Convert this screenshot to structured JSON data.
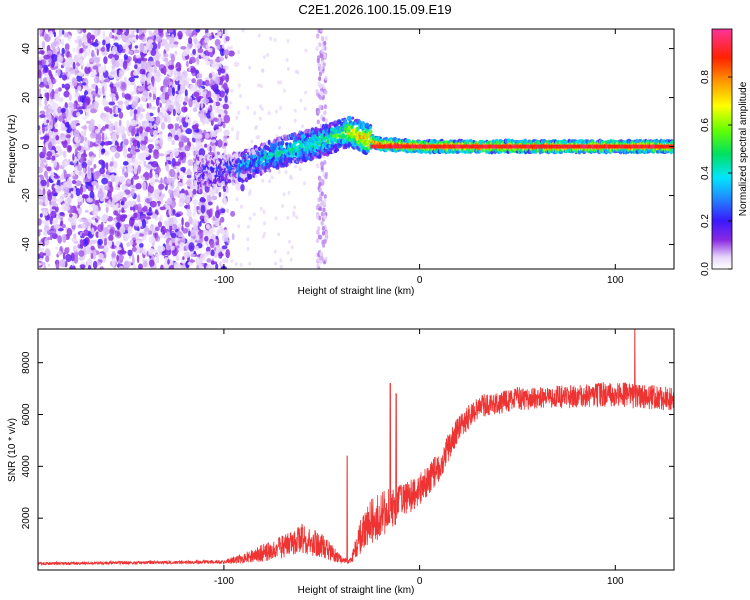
{
  "title": "C2E1.2026.100.15.09.E19",
  "chart_data": [
    {
      "type": "heatmap",
      "xlabel": "Height of straight line (km)",
      "ylabel": "Frequency (Hz)",
      "xlim": [
        -195,
        130
      ],
      "ylim": [
        -50,
        48
      ],
      "xticks": [
        -100,
        0,
        100
      ],
      "yticks": [
        -40,
        -20,
        0,
        20,
        40
      ],
      "colorbar": {
        "label": "Normalized spectral amplitude",
        "range": [
          0.0,
          1.0
        ],
        "ticks": [
          0.0,
          0.2,
          0.4,
          0.6,
          0.8
        ],
        "tick_labels": [
          "0.0",
          "0.2",
          "0.4",
          "0.6",
          "0.8"
        ]
      },
      "features": {
        "noise_region_km": [
          -195,
          -98
        ],
        "vertical_streak_km": -50,
        "signal_track": {
          "x": [
            -115,
            -100,
            -90,
            -80,
            -70,
            -60,
            -50,
            -40,
            -35,
            -30,
            -20,
            0,
            20,
            60,
            100,
            130
          ],
          "freq": [
            -10,
            -10,
            -8,
            -5,
            -2,
            0,
            2,
            5,
            6,
            4,
            1,
            0,
            0,
            0,
            0,
            0
          ],
          "amplitude": [
            0.1,
            0.15,
            0.3,
            0.35,
            0.4,
            0.45,
            0.45,
            0.5,
            0.7,
            0.75,
            0.9,
            0.95,
            0.95,
            0.9,
            0.9,
            0.85
          ]
        }
      }
    },
    {
      "type": "line",
      "xlabel": "Height of straight line (km)",
      "ylabel": "SNR (10 * v/v)",
      "xlim": [
        -195,
        130
      ],
      "ylim": [
        0,
        9300
      ],
      "xticks": [
        -100,
        0,
        100
      ],
      "yticks": [
        2000,
        4000,
        6000,
        8000
      ],
      "color": "#ee3333",
      "envelope": {
        "x": [
          -195,
          -120,
          -100,
          -90,
          -80,
          -70,
          -60,
          -50,
          -40,
          -35,
          -30,
          -25,
          -20,
          -10,
          0,
          10,
          20,
          30,
          50,
          80,
          100,
          110,
          130
        ],
        "mean": [
          250,
          300,
          320,
          450,
          650,
          900,
          1200,
          900,
          400,
          350,
          1300,
          1900,
          2100,
          2600,
          3100,
          4000,
          5500,
          6300,
          6600,
          6700,
          6800,
          6700,
          6600
        ],
        "spread": [
          60,
          60,
          80,
          200,
          350,
          450,
          600,
          500,
          150,
          150,
          700,
          900,
          900,
          700,
          600,
          600,
          500,
          450,
          450,
          450,
          500,
          500,
          450
        ]
      },
      "spikes": [
        {
          "x": -37,
          "y": 4400
        },
        {
          "x": -15,
          "y": 7200
        },
        {
          "x": -12,
          "y": 6800
        },
        {
          "x": 110,
          "y": 9300
        }
      ]
    }
  ]
}
